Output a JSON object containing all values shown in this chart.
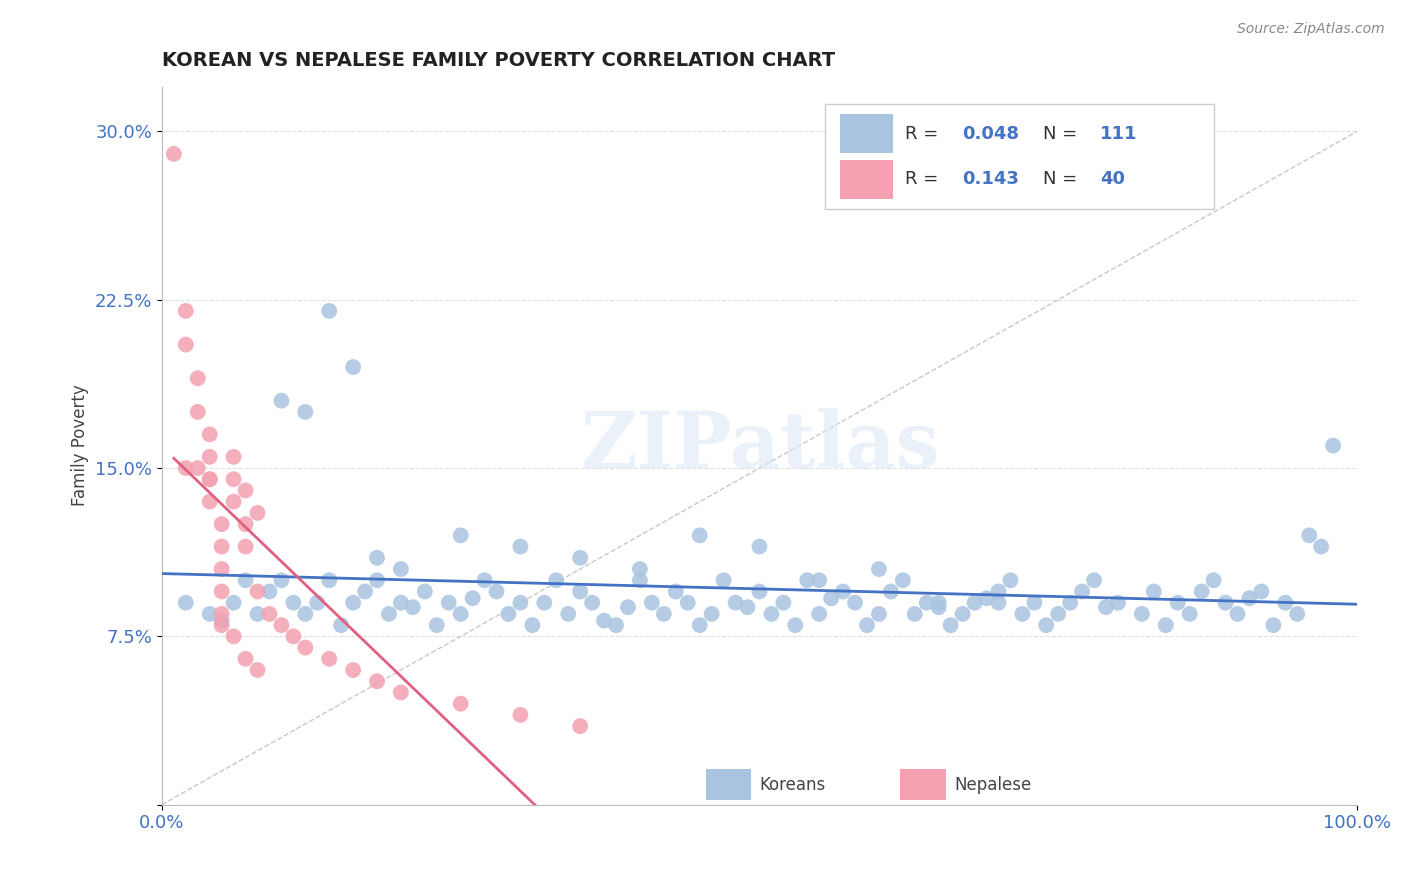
{
  "title": "KOREAN VS NEPALESE FAMILY POVERTY CORRELATION CHART",
  "source": "Source: ZipAtlas.com",
  "ylabel": "Family Poverty",
  "xlim": [
    0.0,
    1.0
  ],
  "ylim": [
    0.0,
    0.32
  ],
  "yticks": [
    0.0,
    0.075,
    0.15,
    0.225,
    0.3
  ],
  "ytick_labels": [
    "",
    "7.5%",
    "15.0%",
    "22.5%",
    "30.0%"
  ],
  "korean_R": 0.048,
  "korean_N": 111,
  "nepalese_R": 0.143,
  "nepalese_N": 40,
  "korean_color": "#a8c4e0",
  "nepalese_color": "#f4a0b0",
  "korean_line_color": "#4472c4",
  "nepalese_line_color": "#e06080",
  "diagonal_color": "#c8c8c8",
  "background_color": "#ffffff",
  "legend_korean_label": "Koreans",
  "legend_nepalese_label": "Nepalese",
  "korean_x": [
    0.02,
    0.04,
    0.05,
    0.06,
    0.07,
    0.08,
    0.09,
    0.1,
    0.11,
    0.12,
    0.13,
    0.14,
    0.15,
    0.16,
    0.17,
    0.18,
    0.19,
    0.2,
    0.21,
    0.22,
    0.23,
    0.24,
    0.25,
    0.26,
    0.27,
    0.28,
    0.29,
    0.3,
    0.31,
    0.32,
    0.33,
    0.34,
    0.35,
    0.36,
    0.37,
    0.38,
    0.39,
    0.4,
    0.41,
    0.42,
    0.43,
    0.44,
    0.45,
    0.46,
    0.47,
    0.48,
    0.49,
    0.5,
    0.51,
    0.52,
    0.53,
    0.54,
    0.55,
    0.56,
    0.57,
    0.58,
    0.59,
    0.6,
    0.61,
    0.62,
    0.63,
    0.64,
    0.65,
    0.66,
    0.67,
    0.68,
    0.69,
    0.7,
    0.71,
    0.72,
    0.73,
    0.74,
    0.75,
    0.76,
    0.77,
    0.78,
    0.79,
    0.8,
    0.82,
    0.83,
    0.84,
    0.85,
    0.86,
    0.87,
    0.88,
    0.89,
    0.9,
    0.91,
    0.92,
    0.93,
    0.94,
    0.95,
    0.96,
    0.97,
    0.98,
    0.1,
    0.12,
    0.14,
    0.16,
    0.18,
    0.2,
    0.25,
    0.3,
    0.35,
    0.4,
    0.45,
    0.5,
    0.55,
    0.6,
    0.65,
    0.7
  ],
  "korean_y": [
    0.09,
    0.085,
    0.082,
    0.09,
    0.1,
    0.085,
    0.095,
    0.1,
    0.09,
    0.085,
    0.09,
    0.1,
    0.08,
    0.09,
    0.095,
    0.1,
    0.085,
    0.09,
    0.088,
    0.095,
    0.08,
    0.09,
    0.085,
    0.092,
    0.1,
    0.095,
    0.085,
    0.09,
    0.08,
    0.09,
    0.1,
    0.085,
    0.095,
    0.09,
    0.082,
    0.08,
    0.088,
    0.1,
    0.09,
    0.085,
    0.095,
    0.09,
    0.08,
    0.085,
    0.1,
    0.09,
    0.088,
    0.095,
    0.085,
    0.09,
    0.08,
    0.1,
    0.085,
    0.092,
    0.095,
    0.09,
    0.08,
    0.085,
    0.095,
    0.1,
    0.085,
    0.09,
    0.088,
    0.08,
    0.085,
    0.09,
    0.092,
    0.095,
    0.1,
    0.085,
    0.09,
    0.08,
    0.085,
    0.09,
    0.095,
    0.1,
    0.088,
    0.09,
    0.085,
    0.095,
    0.08,
    0.09,
    0.085,
    0.095,
    0.1,
    0.09,
    0.085,
    0.092,
    0.095,
    0.08,
    0.09,
    0.085,
    0.12,
    0.115,
    0.16,
    0.18,
    0.175,
    0.22,
    0.195,
    0.11,
    0.105,
    0.12,
    0.115,
    0.11,
    0.105,
    0.12,
    0.115,
    0.1,
    0.105,
    0.09,
    0.09
  ],
  "nepalese_x": [
    0.01,
    0.02,
    0.02,
    0.03,
    0.03,
    0.04,
    0.04,
    0.04,
    0.04,
    0.05,
    0.05,
    0.05,
    0.05,
    0.05,
    0.06,
    0.06,
    0.06,
    0.07,
    0.07,
    0.07,
    0.08,
    0.08,
    0.09,
    0.1,
    0.11,
    0.12,
    0.14,
    0.16,
    0.18,
    0.2,
    0.25,
    0.3,
    0.35,
    0.02,
    0.03,
    0.04,
    0.05,
    0.06,
    0.07,
    0.08
  ],
  "nepalese_y": [
    0.29,
    0.22,
    0.205,
    0.19,
    0.175,
    0.165,
    0.155,
    0.145,
    0.135,
    0.125,
    0.115,
    0.105,
    0.095,
    0.085,
    0.155,
    0.145,
    0.135,
    0.14,
    0.125,
    0.115,
    0.13,
    0.095,
    0.085,
    0.08,
    0.075,
    0.07,
    0.065,
    0.06,
    0.055,
    0.05,
    0.045,
    0.04,
    0.035,
    0.15,
    0.15,
    0.145,
    0.08,
    0.075,
    0.065,
    0.06
  ]
}
